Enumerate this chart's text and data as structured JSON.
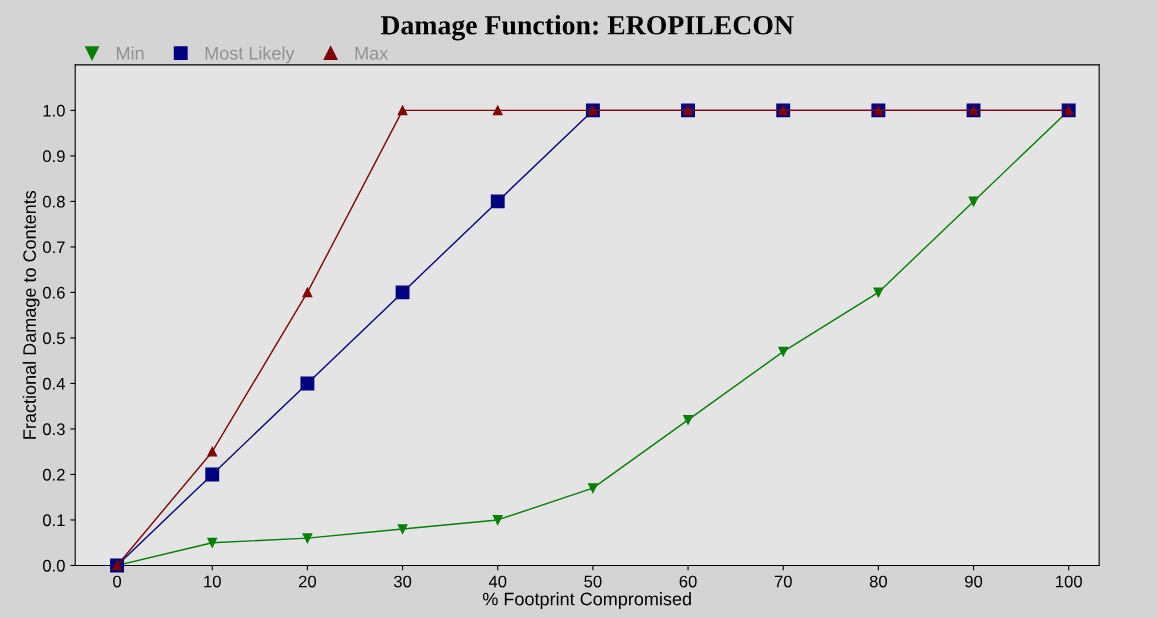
{
  "chart_data": {
    "type": "line",
    "title": "Damage Function: EROPILECON",
    "xlabel": "% Footprint Compromised",
    "ylabel": "Fractional Damage to Contents",
    "x": [
      0,
      10,
      20,
      30,
      40,
      50,
      60,
      70,
      80,
      90,
      100
    ],
    "series": [
      {
        "name": "Min",
        "color": "#008000",
        "marker": "triangle_down",
        "values": [
          0,
          0.05,
          0.06,
          0.08,
          0.1,
          0.17,
          0.32,
          0.47,
          0.6,
          0.8,
          1.0
        ]
      },
      {
        "name": "Most Likely",
        "color": "#000080",
        "marker": "square",
        "values": [
          0,
          0.2,
          0.4,
          0.6,
          0.8,
          1.0,
          1.0,
          1.0,
          1.0,
          1.0,
          1.0
        ]
      },
      {
        "name": "Max",
        "color": "#800000",
        "marker": "triangle",
        "values": [
          0,
          0.25,
          0.6,
          1.0,
          1.0,
          1.0,
          1.0,
          1.0,
          1.0,
          1.0,
          1.0
        ]
      }
    ],
    "xlim": [
      -4.4,
      103.2
    ],
    "ylim": [
      0,
      1.1
    ],
    "xticks": [
      0,
      10,
      20,
      30,
      40,
      50,
      60,
      70,
      80,
      90,
      100
    ],
    "yticks": [
      {
        "value": 0,
        "label": "0.0"
      },
      {
        "value": 0.1,
        "label": "0.1"
      },
      {
        "value": 0.2,
        "label": "0.2"
      },
      {
        "value": 0.3,
        "label": "0.3"
      },
      {
        "value": 0.4,
        "label": "0.4"
      },
      {
        "value": 0.5,
        "label": "0.5"
      },
      {
        "value": 0.6,
        "label": "0.6"
      },
      {
        "value": 0.7,
        "label": "0.7"
      },
      {
        "value": 0.8,
        "label": "0.8"
      },
      {
        "value": 0.9,
        "label": "0.9"
      },
      {
        "value": 1.0,
        "label": "1.0"
      }
    ],
    "grid": false,
    "legend": "top left",
    "line_style": "solid"
  }
}
